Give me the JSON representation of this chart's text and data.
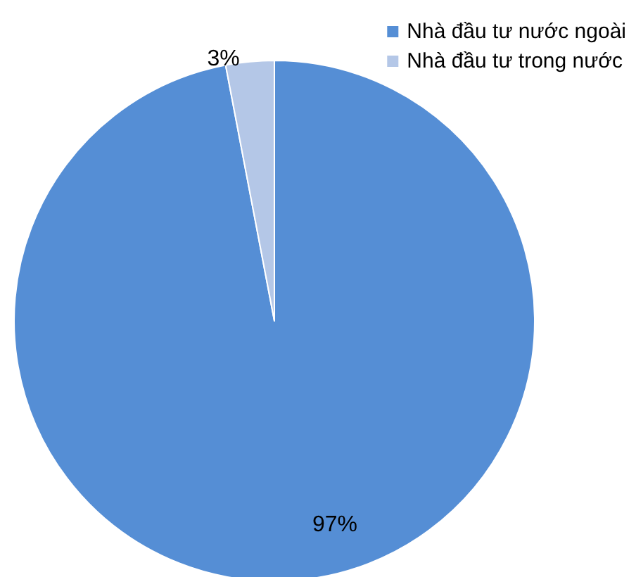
{
  "chart_data": {
    "type": "pie",
    "categories": [
      "Nhà đầu tư nước ngoài",
      "Nhà đầu tư trong nước"
    ],
    "values": [
      97,
      3
    ],
    "colors": [
      "#558ed5",
      "#b4c7e7"
    ],
    "value_labels": [
      "97%",
      "3%"
    ],
    "legend": "top right"
  }
}
